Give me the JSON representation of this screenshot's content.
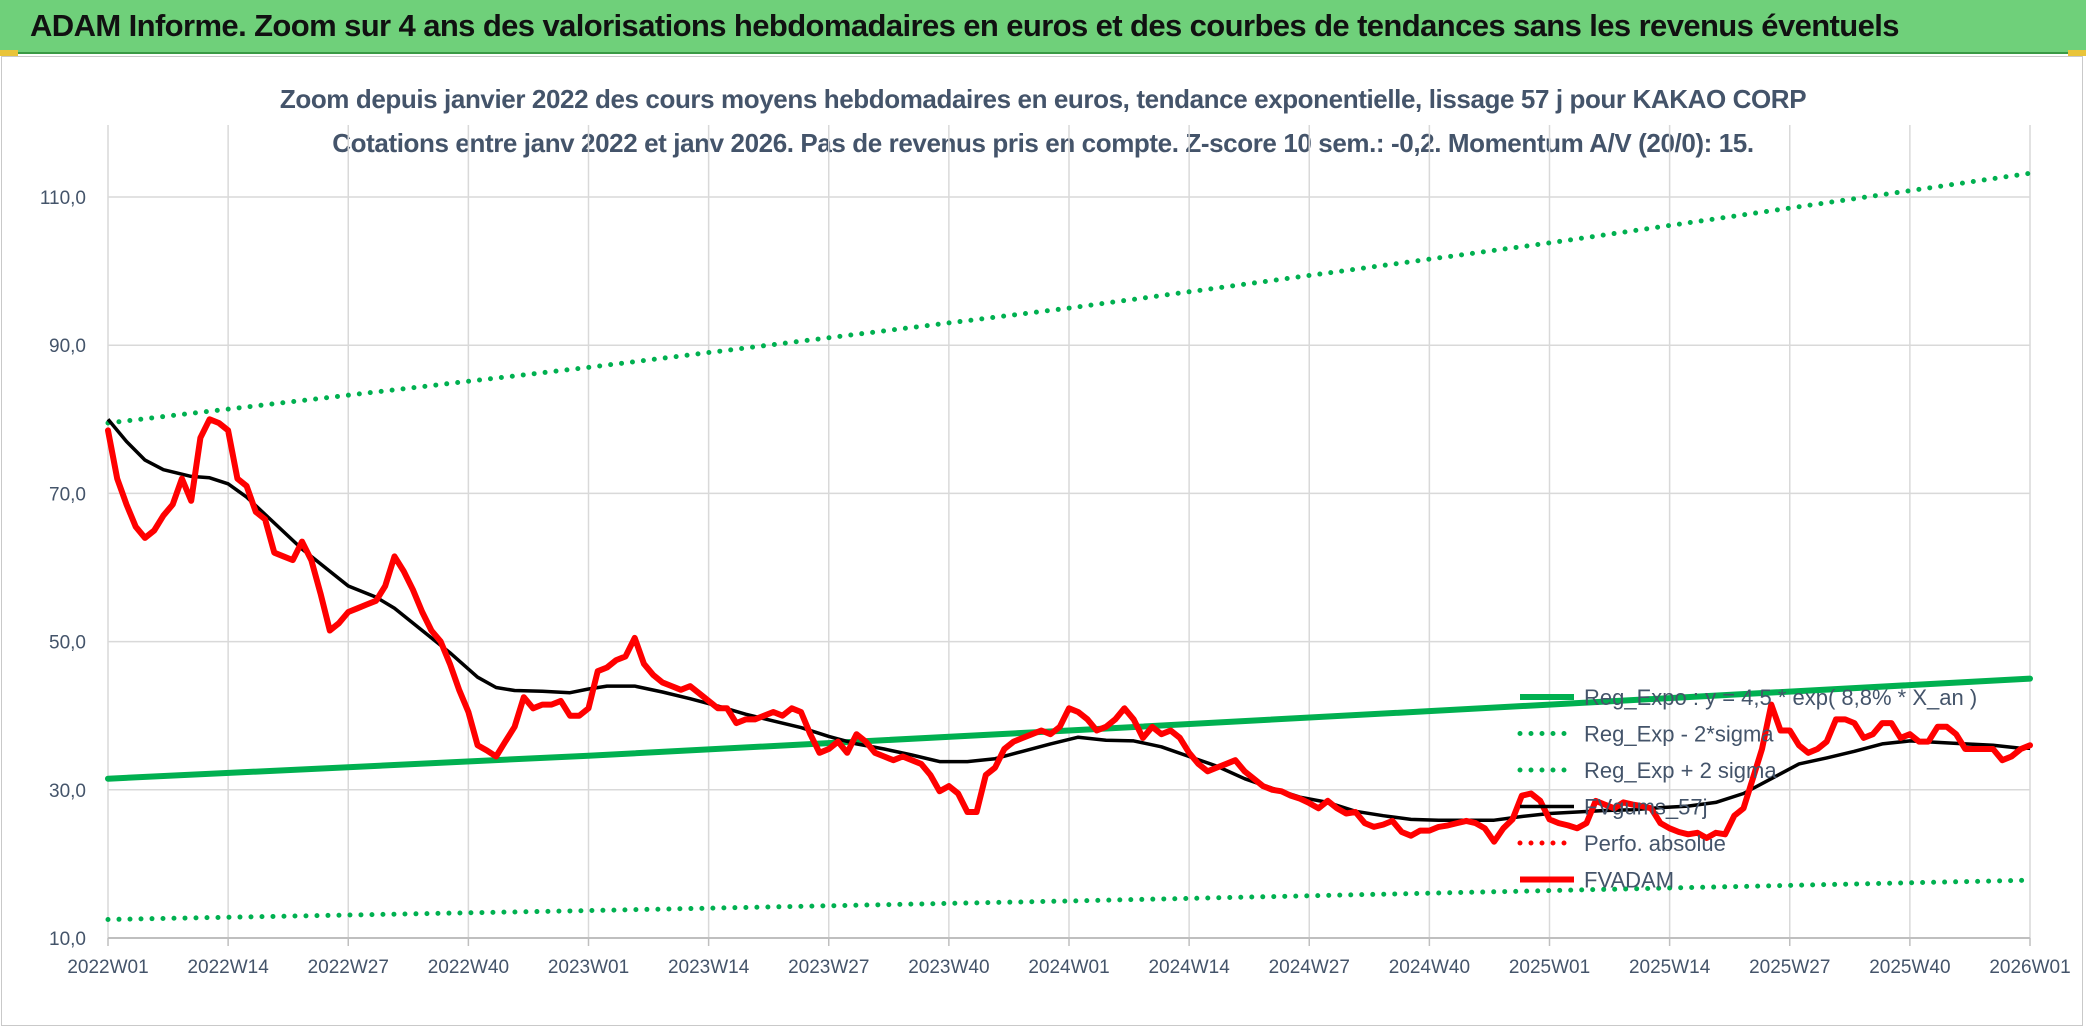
{
  "banner": {
    "title": "ADAM Informe. Zoom sur 4 ans des valorisations hebdomadaires en euros et des courbes de tendances sans les revenus éventuels"
  },
  "chart_data": {
    "type": "line",
    "title_line1": "Zoom depuis janvier 2022 des cours moyens hebdomadaires en euros, tendance exponentielle, lissage 57 j pour KAKAO CORP",
    "title_line2": "Cotations entre janv 2022 et janv 2026. Pas de revenus pris en compte. Z-score 10 sem.: -0,2. Momentum A/V (20/0): 15.",
    "xlabel": "",
    "ylabel": "",
    "ylim": [
      10,
      115
    ],
    "y_ticks": [
      "10,0",
      "30,0",
      "50,0",
      "70,0",
      "90,0",
      "110,0"
    ],
    "y_tick_values": [
      10,
      30,
      50,
      70,
      90,
      110
    ],
    "x_range": [
      0,
      208
    ],
    "x_ticks": [
      "2022W01",
      "2022W14",
      "2022W27",
      "2022W40",
      "2023W01",
      "2023W14",
      "2023W27",
      "2023W40",
      "2024W01",
      "2024W14",
      "2024W27",
      "2024W40",
      "2025W01",
      "2025W14",
      "2025W27",
      "2025W40",
      "2026W01"
    ],
    "x_tick_values": [
      0,
      13,
      26,
      39,
      52,
      65,
      78,
      91,
      104,
      117,
      130,
      143,
      156,
      169,
      182,
      195,
      208
    ],
    "grid": true,
    "legend_position": "bottom-right",
    "series": [
      {
        "name": "Reg_Expo : y = 4,5 * exp( 8,8% * X_an )",
        "color": "#00b050",
        "style": "solid",
        "points": [
          [
            0,
            31.5
          ],
          [
            52,
            34.6
          ],
          [
            104,
            38.0
          ],
          [
            156,
            41.5
          ],
          [
            208,
            45.0
          ]
        ]
      },
      {
        "name": "Reg_Exp - 2*sigma",
        "color": "#00b050",
        "style": "dotted",
        "points": [
          [
            0,
            12.5
          ],
          [
            52,
            13.7
          ],
          [
            104,
            15.0
          ],
          [
            156,
            16.4
          ],
          [
            208,
            17.8
          ]
        ]
      },
      {
        "name": "Reg_Exp + 2 sigma",
        "color": "#00b050",
        "style": "dotted",
        "points": [
          [
            0,
            79.5
          ],
          [
            52,
            87.0
          ],
          [
            104,
            95.0
          ],
          [
            156,
            103.8
          ],
          [
            208,
            113.2
          ]
        ]
      },
      {
        "name": "FVgums_57j",
        "color": "#000000",
        "style": "solid",
        "points": [
          [
            0,
            80
          ],
          [
            2,
            77
          ],
          [
            4,
            74.5
          ],
          [
            6,
            73.2
          ],
          [
            9,
            72.3
          ],
          [
            11,
            72.1
          ],
          [
            13,
            71.3
          ],
          [
            15,
            69.5
          ],
          [
            18,
            66
          ],
          [
            21,
            62.5
          ],
          [
            24,
            59.5
          ],
          [
            26,
            57.5
          ],
          [
            29,
            56
          ],
          [
            31,
            54.5
          ],
          [
            34,
            51.5
          ],
          [
            37,
            48.5
          ],
          [
            40,
            45.2
          ],
          [
            42,
            43.8
          ],
          [
            44,
            43.4
          ],
          [
            47,
            43.3
          ],
          [
            50,
            43.1
          ],
          [
            52,
            43.6
          ],
          [
            54,
            44
          ],
          [
            57,
            44
          ],
          [
            60,
            43.2
          ],
          [
            63,
            42.3
          ],
          [
            66,
            41.3
          ],
          [
            69,
            40.2
          ],
          [
            72,
            39.3
          ],
          [
            75,
            38.4
          ],
          [
            78,
            37.2
          ],
          [
            81,
            36.2
          ],
          [
            84,
            35.5
          ],
          [
            87,
            34.7
          ],
          [
            90,
            33.8
          ],
          [
            93,
            33.8
          ],
          [
            96,
            34.2
          ],
          [
            99,
            35.2
          ],
          [
            102,
            36.2
          ],
          [
            105,
            37.1
          ],
          [
            108,
            36.7
          ],
          [
            111,
            36.6
          ],
          [
            114,
            35.8
          ],
          [
            117,
            34.5
          ],
          [
            120,
            33.2
          ],
          [
            123,
            31.5
          ],
          [
            126,
            30.2
          ],
          [
            129,
            29
          ],
          [
            132,
            28.3
          ],
          [
            135,
            27.1
          ],
          [
            138,
            26.5
          ],
          [
            141,
            26
          ],
          [
            144,
            25.9
          ],
          [
            147,
            25.9
          ],
          [
            150,
            25.9
          ],
          [
            153,
            26.4
          ],
          [
            156,
            26.8
          ],
          [
            159,
            27
          ],
          [
            162,
            27.2
          ],
          [
            165,
            27.3
          ],
          [
            168,
            27.6
          ],
          [
            171,
            27.8
          ],
          [
            174,
            28.3
          ],
          [
            177,
            29.5
          ],
          [
            180,
            31.5
          ],
          [
            183,
            33.5
          ],
          [
            186,
            34.3
          ],
          [
            189,
            35.2
          ],
          [
            192,
            36.2
          ],
          [
            195,
            36.6
          ],
          [
            198,
            36.4
          ],
          [
            201,
            36.2
          ],
          [
            204,
            36
          ],
          [
            207,
            35.6
          ],
          [
            208,
            35.6
          ]
        ]
      },
      {
        "name": "Perfo. absolue",
        "color": "#ff0000",
        "style": "dotted",
        "points": []
      },
      {
        "name": "FVADAM",
        "color": "#ff0000",
        "style": "solid",
        "points": [
          [
            0,
            78.5
          ],
          [
            1,
            72
          ],
          [
            2,
            68.5
          ],
          [
            3,
            65.5
          ],
          [
            4,
            64
          ],
          [
            5,
            65
          ],
          [
            6,
            67
          ],
          [
            7,
            68.5
          ],
          [
            8,
            72
          ],
          [
            9,
            69
          ],
          [
            10,
            77.5
          ],
          [
            11,
            80
          ],
          [
            12,
            79.5
          ],
          [
            13,
            78.5
          ],
          [
            14,
            72
          ],
          [
            15,
            71
          ],
          [
            16,
            67.5
          ],
          [
            17,
            66.5
          ],
          [
            18,
            62
          ],
          [
            19,
            61.5
          ],
          [
            20,
            61
          ],
          [
            21,
            63.5
          ],
          [
            22,
            61
          ],
          [
            23,
            56.5
          ],
          [
            24,
            51.5
          ],
          [
            25,
            52.5
          ],
          [
            26,
            54
          ],
          [
            27,
            54.5
          ],
          [
            28,
            55
          ],
          [
            29,
            55.5
          ],
          [
            30,
            57.5
          ],
          [
            31,
            61.5
          ],
          [
            32,
            59.5
          ],
          [
            33,
            57
          ],
          [
            34,
            54
          ],
          [
            35,
            51.5
          ],
          [
            36,
            50
          ],
          [
            37,
            47
          ],
          [
            38,
            43.5
          ],
          [
            39,
            40.5
          ],
          [
            40,
            36
          ],
          [
            41,
            35.3
          ],
          [
            42,
            34.5
          ],
          [
            43,
            36.5
          ],
          [
            44,
            38.5
          ],
          [
            45,
            42.5
          ],
          [
            46,
            41
          ],
          [
            47,
            41.5
          ],
          [
            48,
            41.5
          ],
          [
            49,
            42
          ],
          [
            50,
            40
          ],
          [
            51,
            40
          ],
          [
            52,
            41
          ],
          [
            53,
            46
          ],
          [
            54,
            46.5
          ],
          [
            55,
            47.5
          ],
          [
            56,
            48
          ],
          [
            57,
            50.5
          ],
          [
            58,
            47
          ],
          [
            59,
            45.5
          ],
          [
            60,
            44.5
          ],
          [
            61,
            44
          ],
          [
            62,
            43.5
          ],
          [
            63,
            44
          ],
          [
            64,
            43
          ],
          [
            65,
            42
          ],
          [
            66,
            41
          ],
          [
            67,
            41
          ],
          [
            68,
            39
          ],
          [
            69,
            39.5
          ],
          [
            70,
            39.5
          ],
          [
            71,
            40
          ],
          [
            72,
            40.5
          ],
          [
            73,
            40
          ],
          [
            74,
            41
          ],
          [
            75,
            40.5
          ],
          [
            76,
            37.5
          ],
          [
            77,
            35
          ],
          [
            78,
            35.5
          ],
          [
            79,
            36.5
          ],
          [
            80,
            35
          ],
          [
            81,
            37.5
          ],
          [
            82,
            36.5
          ],
          [
            83,
            35
          ],
          [
            84,
            34.5
          ],
          [
            85,
            34
          ],
          [
            86,
            34.5
          ],
          [
            87,
            34
          ],
          [
            88,
            33.5
          ],
          [
            89,
            32
          ],
          [
            90,
            29.8
          ],
          [
            91,
            30.5
          ],
          [
            92,
            29.5
          ],
          [
            93,
            27
          ],
          [
            94,
            27
          ],
          [
            95,
            32
          ],
          [
            96,
            33
          ],
          [
            97,
            35.5
          ],
          [
            98,
            36.5
          ],
          [
            99,
            37
          ],
          [
            100,
            37.5
          ],
          [
            101,
            38
          ],
          [
            102,
            37.5
          ],
          [
            103,
            38.5
          ],
          [
            104,
            41
          ],
          [
            105,
            40.5
          ],
          [
            106,
            39.5
          ],
          [
            107,
            38
          ],
          [
            108,
            38.5
          ],
          [
            109,
            39.5
          ],
          [
            110,
            41
          ],
          [
            111,
            39.5
          ],
          [
            112,
            37
          ],
          [
            113,
            38.5
          ],
          [
            114,
            37.5
          ],
          [
            115,
            38
          ],
          [
            116,
            37
          ],
          [
            117,
            35
          ],
          [
            118,
            33.5
          ],
          [
            119,
            32.5
          ],
          [
            120,
            33
          ],
          [
            121,
            33.5
          ],
          [
            122,
            34
          ],
          [
            123,
            32.5
          ],
          [
            124,
            31.5
          ],
          [
            125,
            30.5
          ],
          [
            126,
            30
          ],
          [
            127,
            29.8
          ],
          [
            128,
            29.2
          ],
          [
            129,
            28.8
          ],
          [
            130,
            28.2
          ],
          [
            131,
            27.5
          ],
          [
            132,
            28.5
          ],
          [
            133,
            27.5
          ],
          [
            134,
            26.8
          ],
          [
            135,
            27
          ],
          [
            136,
            25.5
          ],
          [
            137,
            25
          ],
          [
            138,
            25.3
          ],
          [
            139,
            25.8
          ],
          [
            140,
            24.3
          ],
          [
            141,
            23.8
          ],
          [
            142,
            24.5
          ],
          [
            143,
            24.5
          ],
          [
            144,
            25
          ],
          [
            145,
            25.2
          ],
          [
            146,
            25.5
          ],
          [
            147,
            25.8
          ],
          [
            148,
            25.5
          ],
          [
            149,
            24.8
          ],
          [
            150,
            23
          ],
          [
            151,
            24.8
          ],
          [
            152,
            26
          ],
          [
            153,
            29.2
          ],
          [
            154,
            29.5
          ],
          [
            155,
            28.5
          ],
          [
            156,
            26
          ],
          [
            157,
            25.5
          ],
          [
            158,
            25.2
          ],
          [
            159,
            24.8
          ],
          [
            160,
            25.5
          ],
          [
            161,
            28.5
          ],
          [
            162,
            28
          ],
          [
            163,
            27.5
          ],
          [
            164,
            28.3
          ],
          [
            165,
            28
          ],
          [
            166,
            27.8
          ],
          [
            167,
            27.5
          ],
          [
            168,
            25.5
          ],
          [
            169,
            24.8
          ],
          [
            170,
            24.3
          ],
          [
            171,
            24
          ],
          [
            172,
            24.2
          ],
          [
            173,
            23.5
          ],
          [
            174,
            24.2
          ],
          [
            175,
            24
          ],
          [
            176,
            26.5
          ],
          [
            177,
            27.5
          ],
          [
            178,
            31.5
          ],
          [
            179,
            35.5
          ],
          [
            180,
            41.5
          ],
          [
            181,
            38
          ],
          [
            182,
            38
          ],
          [
            183,
            36
          ],
          [
            184,
            35
          ],
          [
            185,
            35.5
          ],
          [
            186,
            36.5
          ],
          [
            187,
            39.5
          ],
          [
            188,
            39.5
          ],
          [
            189,
            39
          ],
          [
            190,
            37
          ],
          [
            191,
            37.5
          ],
          [
            192,
            39
          ],
          [
            193,
            39
          ],
          [
            194,
            37
          ],
          [
            195,
            37.5
          ],
          [
            196,
            36.5
          ],
          [
            197,
            36.5
          ],
          [
            198,
            38.5
          ],
          [
            199,
            38.5
          ],
          [
            200,
            37.5
          ],
          [
            201,
            35.5
          ],
          [
            202,
            35.5
          ],
          [
            203,
            35.5
          ],
          [
            204,
            35.5
          ],
          [
            205,
            34
          ],
          [
            206,
            34.5
          ],
          [
            207,
            35.5
          ],
          [
            208,
            36
          ]
        ]
      }
    ]
  }
}
